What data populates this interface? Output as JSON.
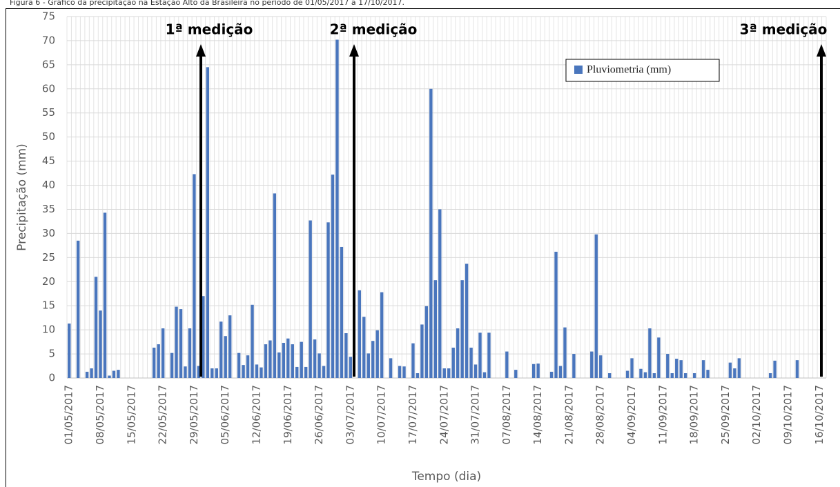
{
  "caption": "Figura 6 - Gráfico da precipitação na Estação Alto da Brasileira no período de 01/05/2017 a 17/10/2017.",
  "chart_data": {
    "type": "bar",
    "y_label": "Precipitação (mm)",
    "x_label": "Tempo (dia)",
    "annotations": [
      "1ª medição",
      "2ª medição",
      "3ª medição"
    ],
    "legend": "top-right",
    "grid": true,
    "ylim": [
      0,
      75
    ],
    "yticks": [
      0,
      5,
      10,
      15,
      20,
      25,
      30,
      35,
      40,
      45,
      50,
      55,
      60,
      65,
      70,
      75
    ],
    "categories": [
      "01/05/2017",
      null,
      null,
      null,
      null,
      null,
      null,
      "08/05/2017",
      null,
      null,
      null,
      null,
      null,
      null,
      "15/05/2017",
      null,
      null,
      null,
      null,
      null,
      null,
      "22/05/2017",
      null,
      null,
      null,
      null,
      null,
      null,
      "29/05/2017",
      null,
      null,
      null,
      null,
      null,
      null,
      "05/06/2017",
      null,
      null,
      null,
      null,
      null,
      null,
      "12/06/2017",
      null,
      null,
      null,
      null,
      null,
      null,
      "19/06/2017",
      null,
      null,
      null,
      null,
      null,
      null,
      "26/06/2017",
      null,
      null,
      null,
      null,
      null,
      null,
      "03/07/2017",
      null,
      null,
      null,
      null,
      null,
      null,
      "10/07/2017",
      null,
      null,
      null,
      null,
      null,
      null,
      "17/07/2017",
      null,
      null,
      null,
      null,
      null,
      null,
      "24/07/2017",
      null,
      null,
      null,
      null,
      null,
      null,
      "31/07/2017",
      null,
      null,
      null,
      null,
      null,
      null,
      "07/08/2017",
      null,
      null,
      null,
      null,
      null,
      null,
      "14/08/2017",
      null,
      null,
      null,
      null,
      null,
      null,
      "21/08/2017",
      null,
      null,
      null,
      null,
      null,
      null,
      "28/08/2017",
      null,
      null,
      null,
      null,
      null,
      null,
      "04/09/2017",
      null,
      null,
      null,
      null,
      null,
      null,
      "11/09/2017",
      null,
      null,
      null,
      null,
      null,
      null,
      "18/09/2017",
      null,
      null,
      null,
      null,
      null,
      null,
      "25/09/2017",
      null,
      null,
      null,
      null,
      null,
      null,
      "02/10/2017",
      null,
      null,
      null,
      null,
      null,
      null,
      "09/10/2017",
      null,
      null,
      null,
      null,
      null,
      null,
      "16/10/2017",
      null
    ],
    "series": [
      {
        "name": "Pluviometria (mm)",
        "color": "#4a76bd",
        "values": [
          11.3,
          0,
          28.5,
          0,
          1.3,
          2,
          21,
          14,
          34.3,
          0.5,
          1.5,
          1.7,
          0,
          0,
          0,
          0,
          0,
          0,
          0,
          6.3,
          7,
          10.3,
          0,
          5.2,
          14.8,
          14.3,
          2.4,
          10.3,
          42.3,
          2.5,
          17,
          64.5,
          2,
          2,
          11.7,
          8.7,
          13,
          0,
          5.2,
          2.7,
          4.7,
          15.2,
          2.8,
          2.2,
          7,
          7.8,
          38.3,
          5.3,
          7.3,
          8.2,
          7,
          2.3,
          7.5,
          2.3,
          32.7,
          8,
          5.1,
          2.5,
          32.3,
          42.2,
          70.2,
          27.2,
          9.3,
          4.4,
          0,
          18.2,
          12.7,
          5.1,
          7.7,
          9.9,
          17.8,
          0,
          4.1,
          0,
          2.5,
          2.4,
          0,
          7.2,
          1,
          11.1,
          14.9,
          60,
          20.3,
          35,
          2,
          2,
          6.3,
          10.3,
          20.3,
          23.7,
          6.3,
          2.8,
          9.4,
          1.2,
          9.4,
          0,
          0,
          0,
          5.5,
          0,
          1.7,
          0,
          0,
          0,
          2.9,
          3,
          0,
          0,
          1.3,
          26.2,
          2.5,
          10.5,
          0,
          5,
          0,
          0,
          0,
          5.5,
          29.8,
          4.7,
          0,
          1,
          0,
          0,
          0,
          1.5,
          4.1,
          0,
          1.9,
          1.2,
          10.3,
          1,
          8.4,
          0,
          5,
          1,
          4,
          3.7,
          1,
          0,
          1,
          0,
          3.7,
          1.7,
          0,
          0,
          0,
          0,
          3.2,
          2,
          4.1,
          0,
          0,
          0,
          0,
          0,
          0,
          1,
          3.6,
          0,
          0,
          0,
          0,
          3.7,
          0,
          0,
          0,
          0,
          0,
          0
        ]
      }
    ]
  }
}
